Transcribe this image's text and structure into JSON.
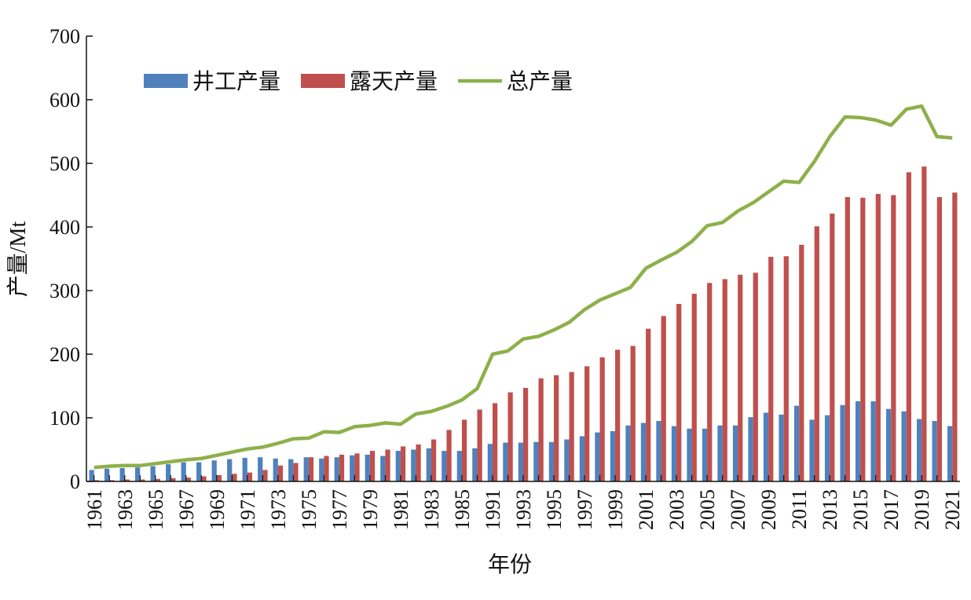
{
  "chart_data": {
    "type": "bar",
    "xlabel": "年份",
    "ylabel": "产量/Mt",
    "categories": [
      "1961",
      null,
      "1963",
      null,
      "1965",
      null,
      "1967",
      null,
      "1969",
      null,
      "1971",
      null,
      "1973",
      null,
      "1975",
      null,
      "1977",
      null,
      "1979",
      null,
      "1981",
      null,
      "1983",
      null,
      "1985",
      null,
      "1991",
      null,
      "1993",
      null,
      "1995",
      null,
      "1997",
      null,
      "1999",
      null,
      "2001",
      null,
      "2003",
      null,
      "2005",
      null,
      "2007",
      null,
      "2009",
      null,
      "2011",
      null,
      "2013",
      null,
      "2015",
      null,
      "2017",
      null,
      "2019",
      null,
      "2021"
    ],
    "series": [
      {
        "name": "井工产量",
        "color": "#4f81bd",
        "type": "bar",
        "values": [
          18,
          20,
          21,
          22,
          24,
          27,
          30,
          30,
          33,
          35,
          37,
          38,
          36,
          35,
          38,
          36,
          38,
          41,
          42,
          40,
          48,
          50,
          52,
          48,
          48,
          52,
          59,
          61,
          61,
          62,
          62,
          66,
          71,
          77,
          79,
          88,
          92,
          95,
          87,
          83,
          83,
          88,
          88,
          101,
          108,
          105,
          119,
          97,
          104,
          120,
          126,
          126,
          114,
          110,
          98,
          95,
          87
        ]
      },
      {
        "name": "露天产量",
        "color": "#c0504d",
        "type": "bar",
        "values": [
          2,
          2,
          3,
          3,
          4,
          5,
          6,
          8,
          10,
          12,
          14,
          18,
          25,
          29,
          38,
          40,
          42,
          44,
          48,
          50,
          55,
          58,
          66,
          81,
          97,
          113,
          123,
          140,
          147,
          162,
          167,
          172,
          181,
          195,
          207,
          213,
          240,
          260,
          279,
          295,
          312,
          318,
          325,
          328,
          353,
          354,
          372,
          401,
          421,
          447,
          446,
          452,
          450,
          486,
          495,
          447,
          454
        ]
      },
      {
        "name": "总产量",
        "color": "#8db04a",
        "type": "line",
        "values": [
          22,
          24,
          25,
          25,
          28,
          31,
          34,
          36,
          41,
          46,
          51,
          54,
          60,
          67,
          68,
          78,
          77,
          86,
          88,
          92,
          90,
          106,
          110,
          118,
          128,
          146,
          200,
          205,
          224,
          228,
          238,
          250,
          270,
          285,
          295,
          305,
          335,
          348,
          360,
          377,
          402,
          407,
          425,
          438,
          455,
          472,
          470,
          503,
          542,
          573,
          572,
          568,
          560,
          585,
          590,
          542,
          540
        ]
      }
    ],
    "ylim": [
      0,
      700
    ],
    "yticks": [
      0,
      100,
      200,
      300,
      400,
      500,
      600,
      700
    ],
    "legend": "top-left"
  }
}
